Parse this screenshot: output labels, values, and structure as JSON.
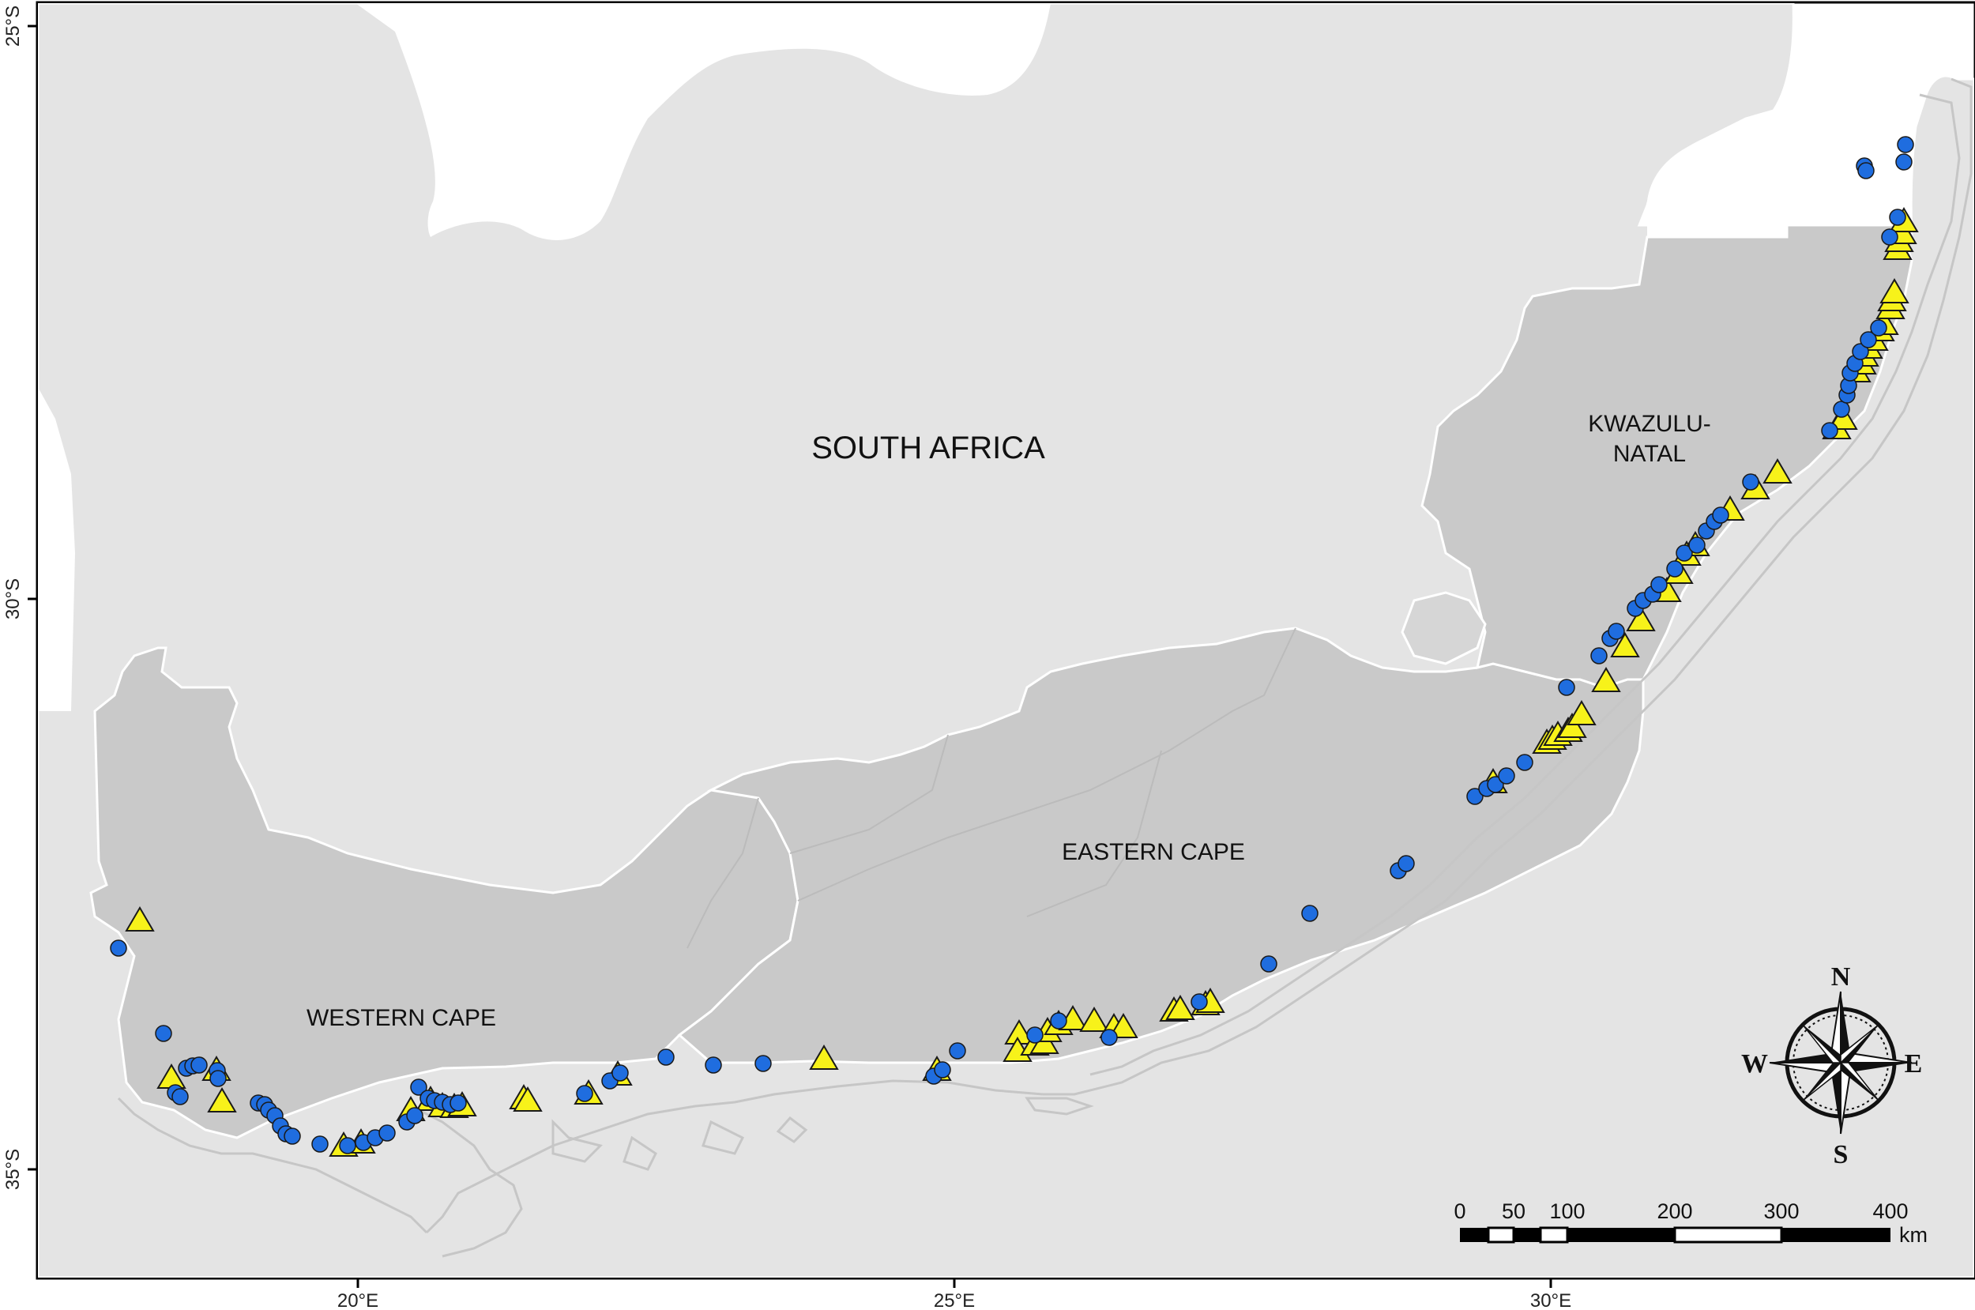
{
  "map": {
    "regions": {
      "country": "SOUTH AFRICA",
      "western_cape": "WESTERN CAPE",
      "eastern_cape": "EASTERN CAPE",
      "kwazulu_natal_line1": "KWAZULU-",
      "kwazulu_natal_line2": "NATAL"
    },
    "axes": {
      "lon_ticks": [
        "20°E",
        "25°E",
        "30°E"
      ],
      "lat_ticks": [
        "25°S",
        "30°S",
        "35°S"
      ]
    },
    "compass": {
      "n": "N",
      "s": "S",
      "e": "E",
      "w": "W"
    },
    "scale_bar": {
      "labels": [
        "0",
        "50",
        "100",
        "200",
        "300",
        "400"
      ],
      "unit": "km"
    },
    "colors": {
      "land_outer": "#e4e4e4",
      "provinces": "#c9c9c9",
      "boundary": "#ffffff",
      "isobath": "#c8c8c8",
      "circle_fill": "#1f6ddf",
      "triangle_fill": "#f7f21a",
      "marker_stroke": "#1a1a1a"
    },
    "marker_types": [
      "circle-marker",
      "triangle-marker"
    ]
  }
}
